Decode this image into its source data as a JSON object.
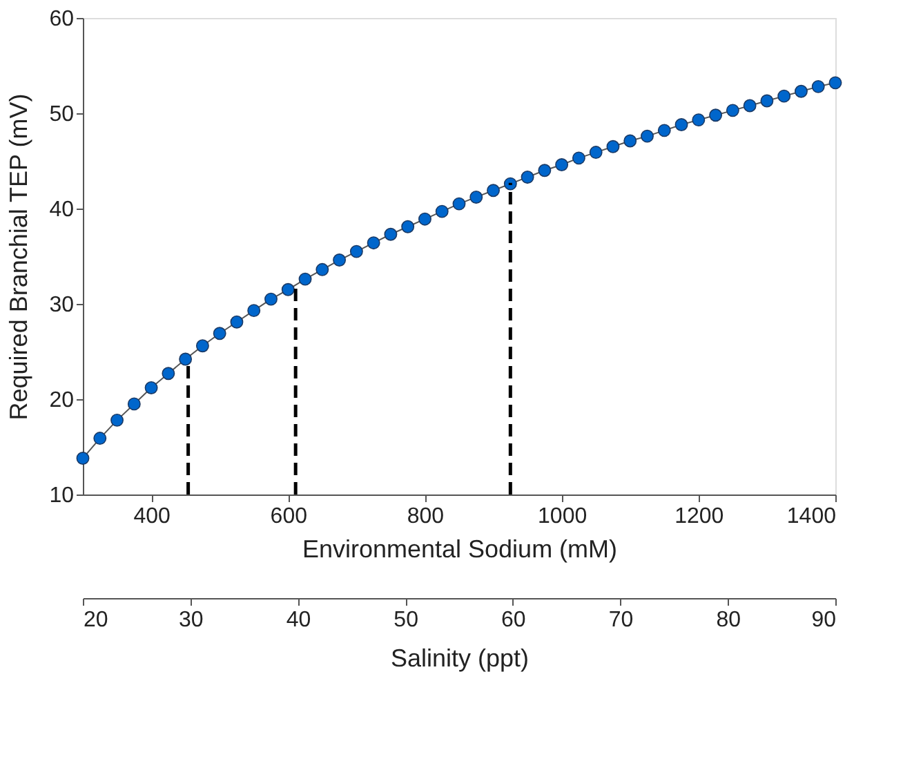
{
  "chart_data": {
    "type": "line",
    "xlabel": "Environmental Sodium (mM)",
    "ylabel": "Required Branchial TEP (mV)",
    "x2label": "Salinity (ppt)",
    "xlim": [
      300,
      1400
    ],
    "xticks": [
      400,
      600,
      800,
      1000,
      1200,
      1400
    ],
    "ylim": [
      10,
      60
    ],
    "yticks": [
      10,
      20,
      30,
      40,
      50,
      60
    ],
    "x2lim": [
      20,
      90
    ],
    "x2ticks": [
      20,
      30,
      40,
      50,
      60,
      70,
      80,
      90
    ],
    "grid": false,
    "series": [
      {
        "marker": "circle",
        "line_style": "solid",
        "color": "#0066cc",
        "x": [
          300,
          325,
          350,
          375,
          400,
          425,
          450,
          475,
          500,
          525,
          550,
          575,
          600,
          625,
          650,
          675,
          700,
          725,
          750,
          775,
          800,
          825,
          850,
          875,
          900,
          925,
          950,
          975,
          1000,
          1025,
          1050,
          1075,
          1100,
          1125,
          1150,
          1175,
          1200,
          1225,
          1250,
          1275,
          1300,
          1325,
          1350,
          1375,
          1400
        ],
        "values": [
          13.8,
          15.9,
          17.8,
          19.5,
          21.2,
          22.7,
          24.2,
          25.6,
          26.9,
          28.1,
          29.3,
          30.5,
          31.5,
          32.6,
          33.6,
          34.6,
          35.5,
          36.4,
          37.3,
          38.1,
          38.9,
          39.7,
          40.5,
          41.2,
          41.9,
          42.6,
          43.3,
          44.0,
          44.6,
          45.3,
          45.9,
          46.5,
          47.1,
          47.6,
          48.2,
          48.8,
          49.3,
          49.8,
          50.3,
          50.8,
          51.3,
          51.8,
          52.3,
          52.8,
          53.2
        ]
      },
      {
        "type": "line",
        "marker": "none",
        "line_style": "dashed",
        "color": "#000000",
        "x": [
          454,
          454
        ],
        "values": [
          10,
          24.2
        ]
      },
      {
        "type": "line",
        "marker": "none",
        "line_style": "dashed",
        "color": "#000000",
        "x": [
          611,
          611
        ],
        "values": [
          10,
          31.7
        ]
      },
      {
        "type": "line",
        "marker": "none",
        "line_style": "dashed",
        "color": "#000000",
        "x": [
          925,
          925
        ],
        "values": [
          10,
          42.7
        ]
      }
    ]
  }
}
